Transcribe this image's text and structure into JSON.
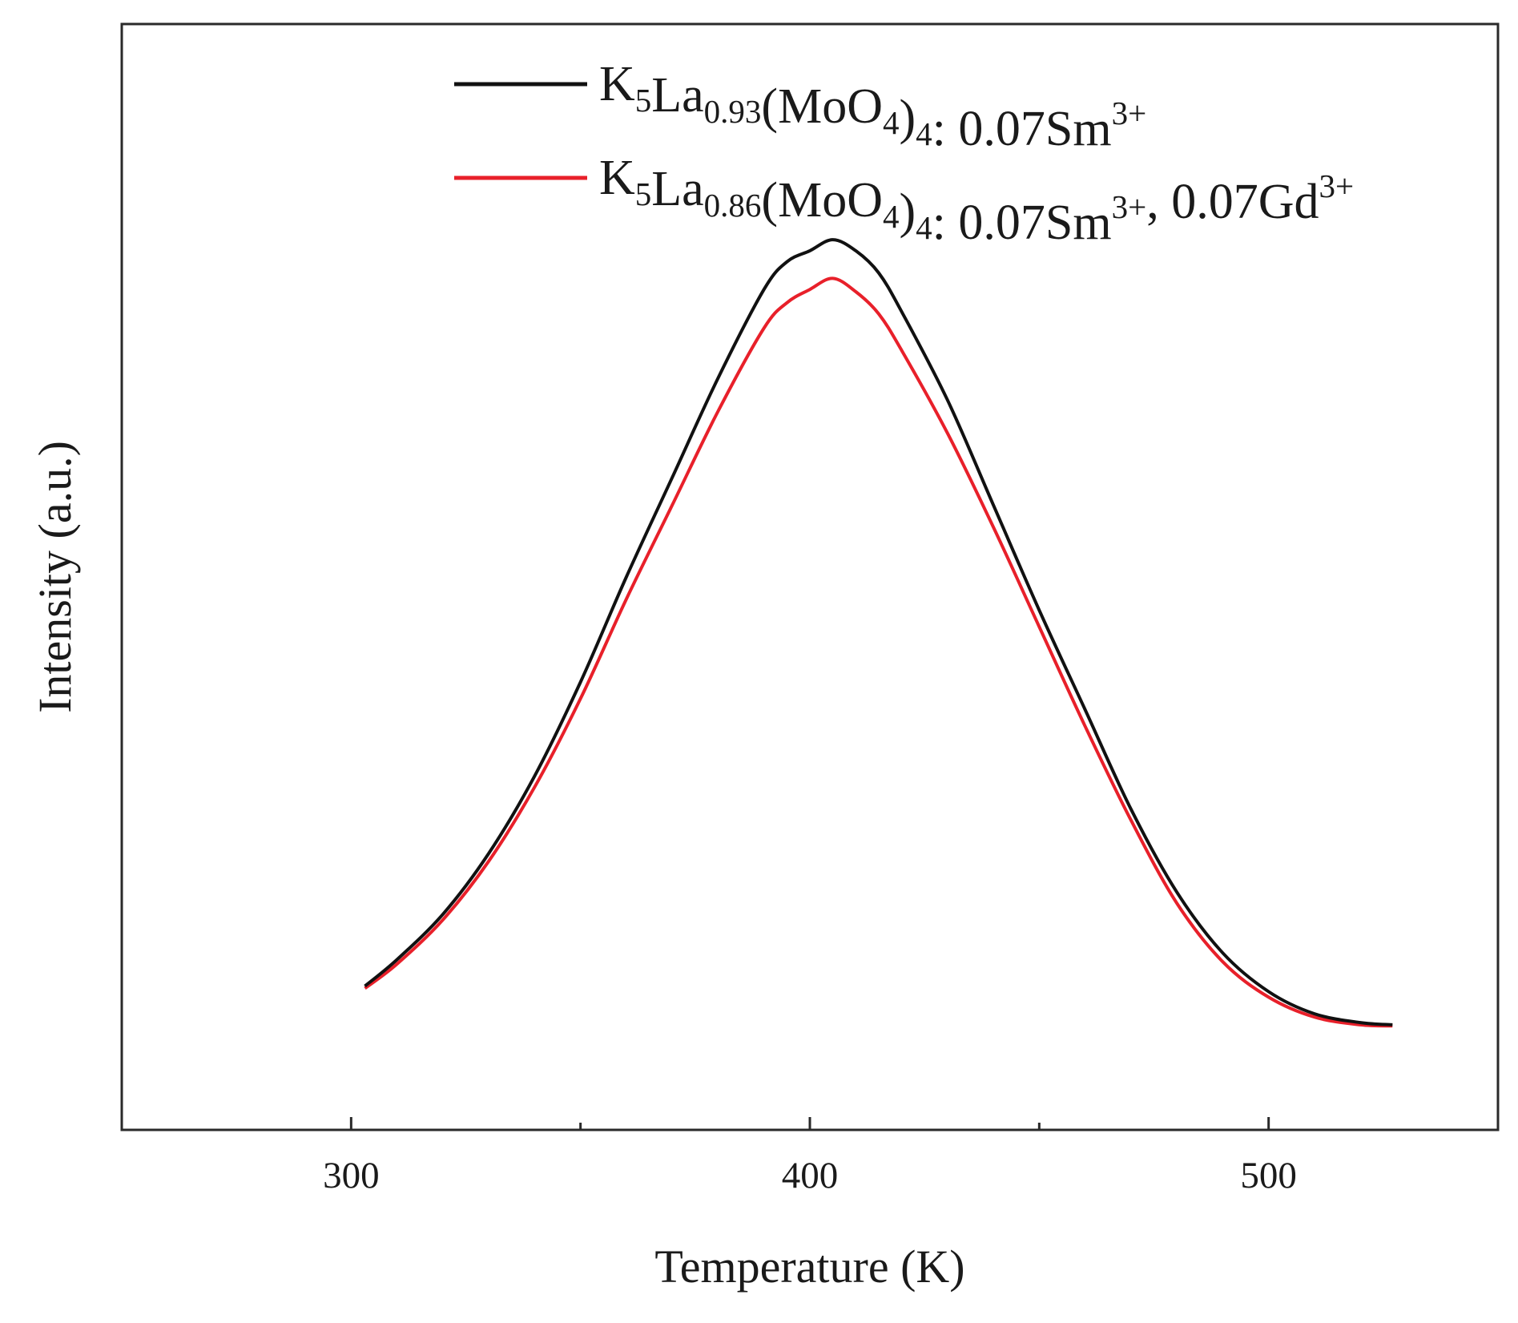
{
  "chart_data": {
    "type": "line",
    "xlabel": "Temperature (K)",
    "ylabel": "Intensity (a.u.)",
    "xlim": [
      250,
      550
    ],
    "ylim": [
      0,
      1
    ],
    "x_ticks": [
      300,
      400,
      500
    ],
    "x_minor_ticks": [
      350,
      450
    ],
    "grid": false,
    "legend_position": "top-right",
    "series": [
      {
        "name": "K5La0.93(MoO4)4: 0.07Sm3+",
        "color": "#111111",
        "legend_parts": [
          {
            "t": "K",
            "s": "n"
          },
          {
            "t": "5",
            "s": "sub"
          },
          {
            "t": "La",
            "s": "n"
          },
          {
            "t": "0.93",
            "s": "sub"
          },
          {
            "t": "(MoO",
            "s": "n"
          },
          {
            "t": "4",
            "s": "sub"
          },
          {
            "t": ")",
            "s": "n"
          },
          {
            "t": "4",
            "s": "sub"
          },
          {
            "t": ": 0.07Sm",
            "s": "n"
          },
          {
            "t": "3+",
            "s": "sup"
          }
        ],
        "x": [
          303,
          310,
          320,
          330,
          340,
          350,
          360,
          370,
          380,
          390,
          395,
          400,
          405,
          410,
          415,
          420,
          430,
          440,
          450,
          460,
          470,
          480,
          490,
          500,
          510,
          520,
          527
        ],
        "y": [
          0.13,
          0.154,
          0.195,
          0.25,
          0.32,
          0.405,
          0.5,
          0.59,
          0.68,
          0.76,
          0.785,
          0.795,
          0.805,
          0.795,
          0.775,
          0.74,
          0.66,
          0.565,
          0.47,
          0.38,
          0.29,
          0.215,
          0.16,
          0.125,
          0.105,
          0.097,
          0.095
        ]
      },
      {
        "name": "K5La0.86(MoO4)4: 0.07Sm3+, 0.07Gd3+",
        "color": "#e8202a",
        "legend_parts": [
          {
            "t": "K",
            "s": "n"
          },
          {
            "t": "5",
            "s": "sub"
          },
          {
            "t": "La",
            "s": "n"
          },
          {
            "t": "0.86",
            "s": "sub"
          },
          {
            "t": "(MoO",
            "s": "n"
          },
          {
            "t": "4",
            "s": "sub"
          },
          {
            "t": ")",
            "s": "n"
          },
          {
            "t": "4",
            "s": "sub"
          },
          {
            "t": ": 0.07Sm",
            "s": "n"
          },
          {
            "t": "3+",
            "s": "sup"
          },
          {
            "t": ", 0.07Gd",
            "s": "n"
          },
          {
            "t": "3+",
            "s": "sup"
          }
        ],
        "x": [
          303,
          310,
          320,
          330,
          340,
          350,
          360,
          370,
          380,
          390,
          395,
          400,
          405,
          410,
          415,
          420,
          430,
          440,
          450,
          460,
          470,
          480,
          490,
          500,
          510,
          520,
          527
        ],
        "y": [
          0.128,
          0.15,
          0.19,
          0.243,
          0.31,
          0.39,
          0.48,
          0.565,
          0.65,
          0.725,
          0.748,
          0.76,
          0.77,
          0.758,
          0.738,
          0.705,
          0.63,
          0.545,
          0.455,
          0.365,
          0.28,
          0.205,
          0.152,
          0.12,
          0.102,
          0.095,
          0.094
        ]
      }
    ]
  }
}
